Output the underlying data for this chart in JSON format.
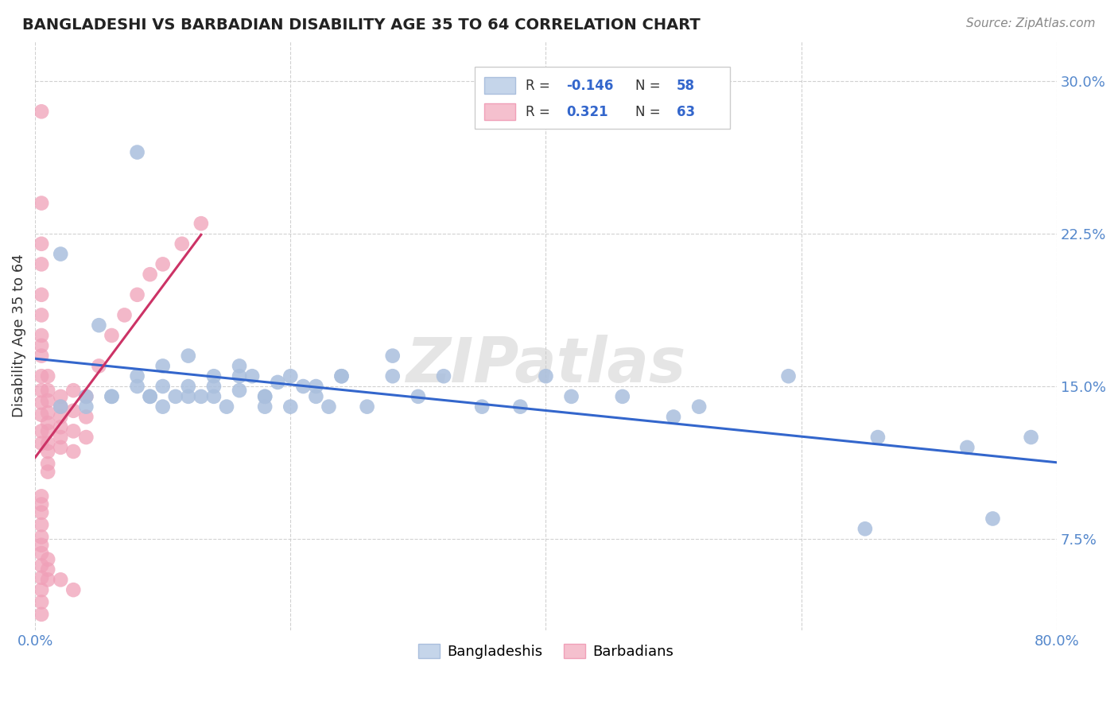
{
  "title": "BANGLADESHI VS BARBADIAN DISABILITY AGE 35 TO 64 CORRELATION CHART",
  "source": "Source: ZipAtlas.com",
  "ylabel": "Disability Age 35 to 64",
  "xlim": [
    0.0,
    0.8
  ],
  "ylim": [
    0.03,
    0.32
  ],
  "x_ticks": [
    0.0,
    0.2,
    0.4,
    0.6,
    0.8
  ],
  "x_tick_labels": [
    "0.0%",
    "",
    "",
    "",
    "80.0%"
  ],
  "y_ticks": [
    0.075,
    0.15,
    0.225,
    0.3
  ],
  "y_tick_labels": [
    "7.5%",
    "15.0%",
    "22.5%",
    "30.0%"
  ],
  "bg_color": "#ffffff",
  "grid_color": "#cccccc",
  "blue_scatter_color": "#aabfdd",
  "pink_scatter_color": "#f0a0b8",
  "blue_line_color": "#3366cc",
  "pink_line_color": "#cc3366",
  "blue_legend_label": "Bangladeshis",
  "pink_legend_label": "Barbadians",
  "bangladeshi_x": [
    0.02,
    0.05,
    0.08,
    0.1,
    0.12,
    0.14,
    0.16,
    0.18,
    0.2,
    0.22,
    0.24,
    0.26,
    0.28,
    0.3,
    0.32,
    0.38,
    0.42,
    0.5,
    0.65,
    0.02,
    0.04,
    0.06,
    0.08,
    0.09,
    0.1,
    0.11,
    0.12,
    0.13,
    0.14,
    0.15,
    0.16,
    0.17,
    0.18,
    0.19,
    0.2,
    0.21,
    0.22,
    0.23,
    0.08,
    0.1,
    0.12,
    0.14,
    0.16,
    0.18,
    0.24,
    0.28,
    0.35,
    0.4,
    0.46,
    0.52,
    0.59,
    0.66,
    0.73,
    0.78,
    0.04,
    0.06,
    0.09,
    0.75
  ],
  "bangladeshi_y": [
    0.215,
    0.18,
    0.155,
    0.15,
    0.165,
    0.145,
    0.16,
    0.14,
    0.155,
    0.15,
    0.155,
    0.14,
    0.155,
    0.145,
    0.155,
    0.14,
    0.145,
    0.135,
    0.08,
    0.14,
    0.14,
    0.145,
    0.15,
    0.145,
    0.14,
    0.145,
    0.15,
    0.145,
    0.155,
    0.14,
    0.148,
    0.155,
    0.145,
    0.152,
    0.14,
    0.15,
    0.145,
    0.14,
    0.265,
    0.16,
    0.145,
    0.15,
    0.155,
    0.145,
    0.155,
    0.165,
    0.14,
    0.155,
    0.145,
    0.14,
    0.155,
    0.125,
    0.12,
    0.125,
    0.145,
    0.145,
    0.145,
    0.085
  ],
  "barbadian_x": [
    0.005,
    0.005,
    0.005,
    0.005,
    0.005,
    0.005,
    0.005,
    0.005,
    0.005,
    0.005,
    0.005,
    0.005,
    0.005,
    0.005,
    0.005,
    0.01,
    0.01,
    0.01,
    0.01,
    0.01,
    0.01,
    0.01,
    0.01,
    0.01,
    0.01,
    0.02,
    0.02,
    0.02,
    0.02,
    0.02,
    0.02,
    0.03,
    0.03,
    0.03,
    0.03,
    0.04,
    0.04,
    0.04,
    0.05,
    0.06,
    0.07,
    0.08,
    0.09,
    0.1,
    0.115,
    0.13,
    0.005,
    0.005,
    0.005,
    0.005,
    0.005,
    0.005,
    0.005,
    0.005,
    0.005,
    0.005,
    0.005,
    0.005,
    0.01,
    0.01,
    0.01,
    0.02,
    0.03
  ],
  "barbadian_y": [
    0.285,
    0.24,
    0.22,
    0.21,
    0.195,
    0.185,
    0.175,
    0.17,
    0.165,
    0.155,
    0.148,
    0.142,
    0.136,
    0.128,
    0.122,
    0.155,
    0.148,
    0.143,
    0.137,
    0.132,
    0.128,
    0.122,
    0.118,
    0.112,
    0.108,
    0.145,
    0.14,
    0.135,
    0.13,
    0.125,
    0.12,
    0.148,
    0.138,
    0.128,
    0.118,
    0.145,
    0.135,
    0.125,
    0.16,
    0.175,
    0.185,
    0.195,
    0.205,
    0.21,
    0.22,
    0.23,
    0.096,
    0.092,
    0.088,
    0.082,
    0.076,
    0.072,
    0.068,
    0.062,
    0.056,
    0.05,
    0.044,
    0.038,
    0.065,
    0.06,
    0.055,
    0.055,
    0.05
  ]
}
